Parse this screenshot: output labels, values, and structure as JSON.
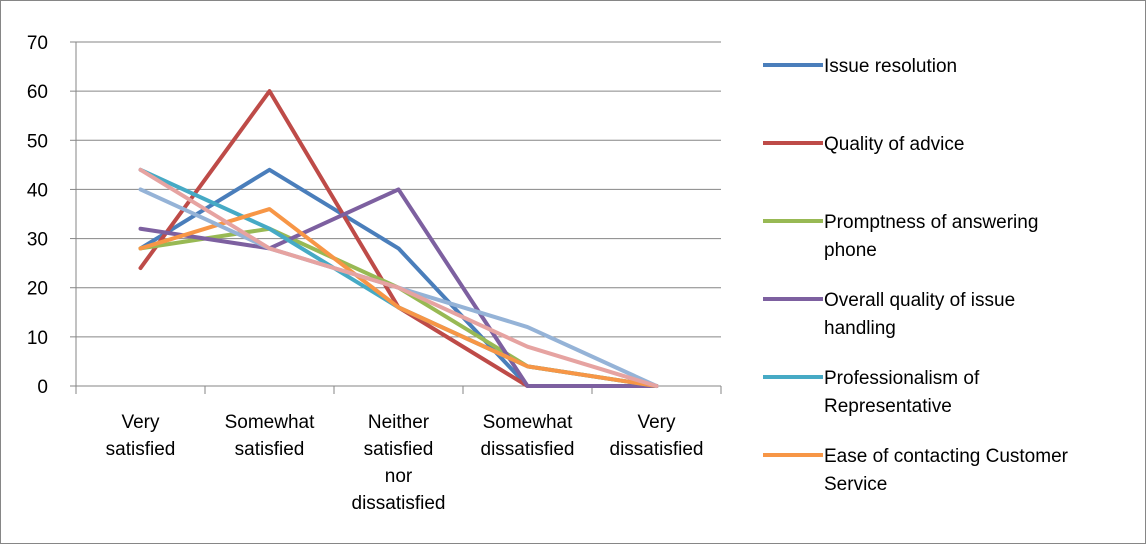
{
  "chart_data": {
    "type": "line",
    "title": "",
    "xlabel": "",
    "ylabel": "",
    "ylim": [
      0,
      70
    ],
    "yticks": [
      0,
      10,
      20,
      30,
      40,
      50,
      60,
      70
    ],
    "grid": true,
    "legend_position": "right",
    "categories": [
      [
        "Very",
        "satisfied"
      ],
      [
        "Somewhat",
        "satisfied"
      ],
      [
        "Neither",
        "satisfied",
        "nor",
        "dissatisfied"
      ],
      [
        "Somewhat",
        "dissatisfied"
      ],
      [
        "Very",
        "dissatisfied"
      ]
    ],
    "series": [
      {
        "name": "Issue resolution",
        "lines": [
          "Issue resolution"
        ],
        "color": "#4A7EBB",
        "values": [
          28,
          44,
          28,
          0,
          0
        ]
      },
      {
        "name": "Quality of advice",
        "lines": [
          "Quality of advice"
        ],
        "color": "#BE4B48",
        "values": [
          24,
          60,
          16,
          0,
          0
        ]
      },
      {
        "name": "Promptness of answering phone",
        "lines": [
          "Promptness of answering",
          "phone"
        ],
        "color": "#98B954",
        "values": [
          28,
          32,
          20,
          4,
          0
        ]
      },
      {
        "name": "Overall quality of issue handling",
        "lines": [
          "Overall quality of issue",
          "handling"
        ],
        "color": "#7D60A0",
        "values": [
          32,
          28,
          40,
          0,
          0
        ]
      },
      {
        "name": "Professionalism of Representative",
        "lines": [
          "Professionalism of",
          "Representative"
        ],
        "color": "#46AAC5",
        "values": [
          44,
          32,
          16,
          4,
          0
        ]
      },
      {
        "name": "Ease of contacting Customer Service",
        "lines": [
          "Ease of contacting Customer",
          "Service"
        ],
        "color": "#F79646",
        "values": [
          28,
          36,
          16,
          4,
          0
        ]
      },
      {
        "name": "",
        "lines": [],
        "color": "#95B3D7",
        "values": [
          40,
          28,
          20,
          12,
          0
        ]
      },
      {
        "name": "",
        "lines": [],
        "color": "#E6A3A1",
        "values": [
          44,
          28,
          20,
          8,
          0
        ]
      }
    ]
  }
}
